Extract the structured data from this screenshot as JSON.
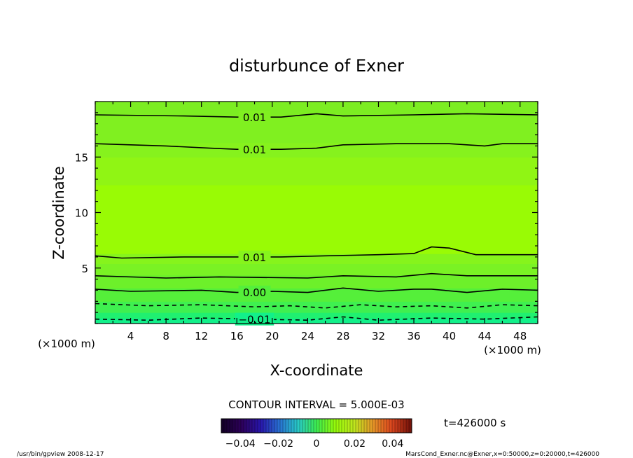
{
  "chart_data": {
    "type": "heatmap",
    "title": "disturbunce of Exner",
    "xlabel": "X-coordinate",
    "ylabel": "Z-coordinate",
    "x_unit": "(×1000 m)",
    "y_unit": "(×1000 m)",
    "xlim": [
      0,
      50
    ],
    "ylim": [
      0,
      20
    ],
    "x_ticks": [
      "4",
      "8",
      "12",
      "16",
      "20",
      "24",
      "28",
      "32",
      "36",
      "40",
      "44",
      "48"
    ],
    "y_ticks": [
      "5",
      "10",
      "15"
    ],
    "contour_interval_label": "CONTOUR INTERVAL = 5.000E-03",
    "time_label": "t=426000 s",
    "colorbar_ticks": [
      "−0.04",
      "−0.02",
      "0",
      "0.02",
      "0.04"
    ],
    "colorbar_range": [
      -0.05,
      0.05
    ],
    "field_bands": [
      {
        "z": [
          0.0,
          0.5
        ],
        "color": "#12f08a"
      },
      {
        "z": [
          0.5,
          1.0
        ],
        "color": "#20f070"
      },
      {
        "z": [
          1.0,
          2.0
        ],
        "color": "#3ff050"
      },
      {
        "z": [
          2.0,
          3.2
        ],
        "color": "#55ef3a"
      },
      {
        "z": [
          3.2,
          4.4
        ],
        "color": "#6df02a"
      },
      {
        "z": [
          4.4,
          5.4
        ],
        "color": "#7af224"
      },
      {
        "z": [
          5.4,
          6.3
        ],
        "color": "#86f41c"
      },
      {
        "z": [
          6.3,
          12.5
        ],
        "color": "#99fb05"
      },
      {
        "z": [
          12.5,
          15.0
        ],
        "color": "#90f514"
      },
      {
        "z": [
          15.0,
          16.3
        ],
        "color": "#86f21d"
      },
      {
        "z": [
          16.3,
          18.8
        ],
        "color": "#80f020"
      },
      {
        "z": [
          18.8,
          20.0
        ],
        "color": "#7ced22"
      }
    ],
    "contours": [
      {
        "label": "0.01",
        "style": "solid",
        "points": [
          [
            0,
            18.8
          ],
          [
            10,
            18.7
          ],
          [
            16,
            18.6
          ],
          [
            21,
            18.6
          ],
          [
            25,
            18.9
          ],
          [
            28,
            18.7
          ],
          [
            36,
            18.8
          ],
          [
            42,
            18.9
          ],
          [
            50,
            18.8
          ]
        ]
      },
      {
        "label": "0.01",
        "style": "solid",
        "points": [
          [
            0,
            16.2
          ],
          [
            8,
            16.0
          ],
          [
            13,
            15.8
          ],
          [
            16,
            15.7
          ],
          [
            21,
            15.7
          ],
          [
            25,
            15.8
          ],
          [
            28,
            16.1
          ],
          [
            34,
            16.2
          ],
          [
            40,
            16.2
          ],
          [
            44,
            16.0
          ],
          [
            46,
            16.2
          ],
          [
            50,
            16.2
          ]
        ]
      },
      {
        "label": "0.01",
        "style": "solid",
        "points": [
          [
            0,
            6.1
          ],
          [
            3,
            5.9
          ],
          [
            10,
            6.0
          ],
          [
            16,
            6.0
          ],
          [
            21,
            6.0
          ],
          [
            26,
            6.1
          ],
          [
            32,
            6.2
          ],
          [
            36,
            6.3
          ],
          [
            38,
            6.9
          ],
          [
            40,
            6.8
          ],
          [
            43,
            6.2
          ],
          [
            50,
            6.2
          ]
        ]
      },
      {
        "label": "",
        "style": "solid",
        "points": [
          [
            0,
            4.3
          ],
          [
            8,
            4.1
          ],
          [
            14,
            4.2
          ],
          [
            24,
            4.1
          ],
          [
            28,
            4.3
          ],
          [
            34,
            4.2
          ],
          [
            38,
            4.5
          ],
          [
            42,
            4.3
          ],
          [
            50,
            4.3
          ]
        ]
      },
      {
        "label": "0.00",
        "style": "solid",
        "points": [
          [
            0,
            3.1
          ],
          [
            4,
            2.9
          ],
          [
            12,
            3.0
          ],
          [
            16,
            2.8
          ],
          [
            20,
            2.9
          ],
          [
            24,
            2.8
          ],
          [
            28,
            3.2
          ],
          [
            32,
            2.9
          ],
          [
            36,
            3.1
          ],
          [
            38,
            3.1
          ],
          [
            42,
            2.8
          ],
          [
            46,
            3.1
          ],
          [
            50,
            3.0
          ]
        ]
      },
      {
        "label": "",
        "style": "dashed",
        "points": [
          [
            0,
            1.8
          ],
          [
            6,
            1.6
          ],
          [
            12,
            1.7
          ],
          [
            18,
            1.5
          ],
          [
            22,
            1.6
          ],
          [
            26,
            1.4
          ],
          [
            30,
            1.7
          ],
          [
            34,
            1.5
          ],
          [
            38,
            1.6
          ],
          [
            42,
            1.4
          ],
          [
            46,
            1.7
          ],
          [
            50,
            1.6
          ]
        ]
      },
      {
        "label": "−0.01",
        "style": "dashed",
        "points": [
          [
            0,
            0.4
          ],
          [
            6,
            0.3
          ],
          [
            12,
            0.5
          ],
          [
            18,
            0.4
          ],
          [
            24,
            0.3
          ],
          [
            28,
            0.6
          ],
          [
            32,
            0.3
          ],
          [
            38,
            0.5
          ],
          [
            44,
            0.4
          ],
          [
            50,
            0.6
          ]
        ]
      }
    ]
  },
  "footer": {
    "left": "/usr/bin/gpview  2008-12-17",
    "right": "MarsCond_Exner.nc@Exner,x=0:50000,z=0:20000,t=426000"
  }
}
